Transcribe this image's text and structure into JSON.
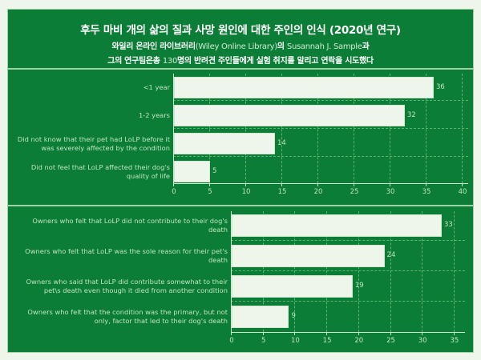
{
  "header": {
    "title": "후두 마비 개의 삶의 질과 사망 원인에 대한 주인의 인식 (2020년 연구)",
    "line1_a": "와일리 온라인 라이브러리",
    "line1_b": "(Wiley Online Library)",
    "line1_c": "의 ",
    "line1_d": "Susannah J. Sample",
    "line1_e": "과",
    "line2_a": "그의 연구팀은총 ",
    "line2_b": "130",
    "line2_c": "명의 반려견 주인들에게 실험 취지를 알리고 연락을 시도했다"
  },
  "colors": {
    "background": "#eef6ec",
    "panel": "#0b7d36",
    "bar": "#eef6ec",
    "label_text": "#bfe5c0"
  },
  "chart_data": [
    {
      "type": "bar",
      "orientation": "horizontal",
      "categories": [
        "<1 year",
        "1-2 years",
        "Did not know that their pet had LoLP before it was severely affected by the condition",
        "Did not feel that LoLP affected their dog's quality of life"
      ],
      "values": [
        36,
        32,
        14,
        5
      ],
      "xlim": [
        0,
        40
      ],
      "xticks": [
        0,
        5,
        10,
        15,
        20,
        25,
        30,
        35,
        40
      ],
      "grid": true,
      "data_labels": true
    },
    {
      "type": "bar",
      "orientation": "horizontal",
      "categories": [
        "Owners who felt that LoLP did not contribute to their dog's death",
        "Owners who felt that LoLP was the sole reason for their pet's death",
        "Owners who said that LoLP did contribute somewhat to their pet\\s death even though it died from another condition",
        "Owners who felt that the condition was the primary, but not only, factor that led to their dog's death"
      ],
      "values": [
        33,
        24,
        19,
        9
      ],
      "xlim": [
        0,
        35
      ],
      "xticks": [
        0,
        5,
        10,
        15,
        20,
        25,
        30,
        35
      ],
      "grid": true,
      "data_labels": true
    }
  ],
  "chart1": {
    "labels": [
      [
        "<1 year"
      ],
      [
        "1-2 years"
      ],
      [
        "Did not know that their pet had LoLP before it",
        "was severely affected by the condition"
      ],
      [
        "Did not feel that LoLP affected their dog's",
        "quality of life"
      ]
    ],
    "values": [
      "36",
      "32",
      "14",
      "5"
    ],
    "ticks": [
      "0",
      "5",
      "10",
      "15",
      "20",
      "25",
      "30",
      "35",
      "40"
    ]
  },
  "chart2": {
    "labels": [
      [
        "Owners who felt that LoLP did not contribute to their dog's",
        "death"
      ],
      [
        "Owners who felt that LoLP was the sole reason for their pet's",
        "death"
      ],
      [
        "Owners who said that LoLP did contribute somewhat to their",
        "pet\\s death even though it died from another condition"
      ],
      [
        "Owners who felt that the condition was the primary, but not",
        "only, factor that led to their dog's death"
      ]
    ],
    "values": [
      "33",
      "24",
      "19",
      "9"
    ],
    "ticks": [
      "0",
      "5",
      "10",
      "15",
      "20",
      "25",
      "30",
      "35"
    ]
  }
}
